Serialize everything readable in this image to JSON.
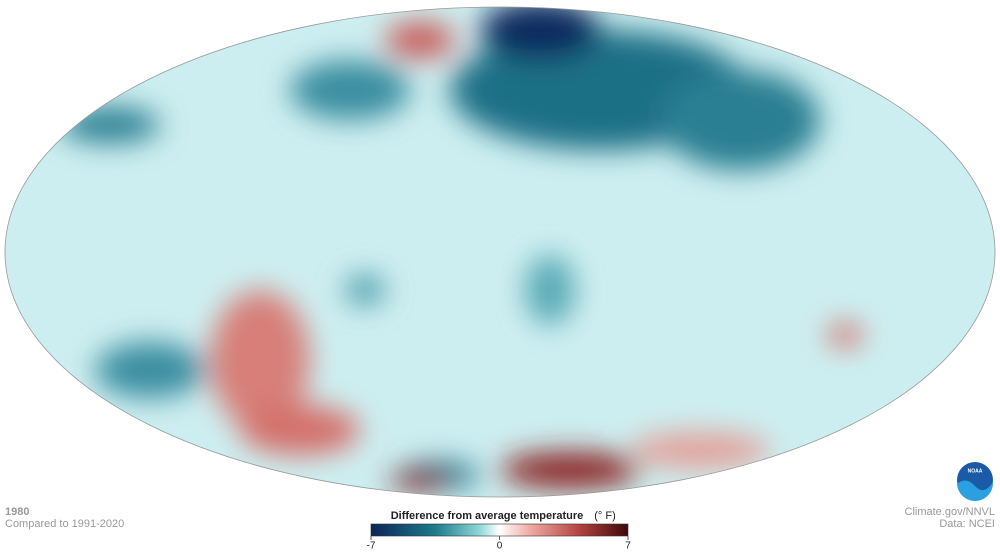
{
  "map": {
    "year": "1980",
    "baseline": "Compared to 1991-2020",
    "legend": {
      "title": "Difference from average temperature",
      "unit": "(° F)",
      "ticks": [
        -7,
        0,
        7
      ]
    },
    "credit": "Climate.gov/NNVL",
    "source": "Data: NCEI",
    "logo": {
      "text": "NOAA"
    }
  }
}
